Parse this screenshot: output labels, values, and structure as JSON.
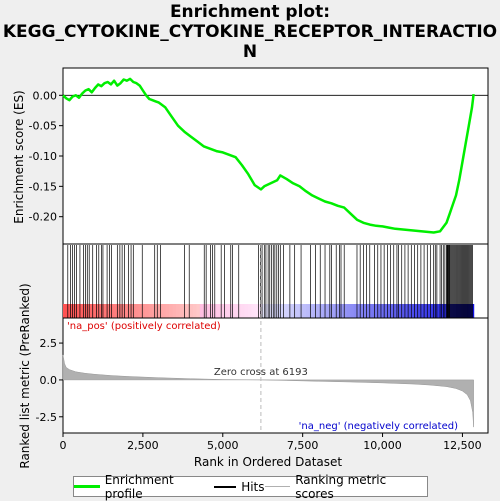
{
  "title_line1": "Enrichment plot:",
  "title_line2": "KEGG_CYTOKINE_CYTOKINE_RECEPTOR_INTERACTIO",
  "title_line3": "N",
  "chart_data": {
    "type": "line",
    "panels": {
      "enrichment": {
        "ylabel": "Enrichment score (ES)",
        "ylim": [
          -0.245,
          0.045
        ],
        "yticks": [
          0.0,
          -0.05,
          -0.1,
          -0.15,
          -0.2
        ],
        "ytick_labels": [
          "0.00",
          "-0.05",
          "-0.10",
          "-0.15",
          "-0.20"
        ],
        "line_color": "#00ee00",
        "series": [
          {
            "name": "Enrichment profile",
            "x": [
              0,
              100,
              200,
              300,
              400,
              500,
              600,
              700,
              800,
              900,
              1000,
              1100,
              1200,
              1300,
              1400,
              1500,
              1600,
              1700,
              1800,
              1900,
              2000,
              2100,
              2200,
              2300,
              2400,
              2500,
              2600,
              2700,
              2800,
              2900,
              3000,
              3200,
              3400,
              3600,
              3800,
              4000,
              4200,
              4400,
              4600,
              4800,
              5000,
              5200,
              5400,
              5600,
              5800,
              6000,
              6193,
              6300,
              6500,
              6700,
              6800,
              7000,
              7200,
              7400,
              7600,
              7800,
              8000,
              8200,
              8400,
              8600,
              8800,
              9000,
              9200,
              9400,
              9600,
              9800,
              10000,
              10200,
              10400,
              10600,
              10800,
              11000,
              11200,
              11400,
              11600,
              11800,
              12000,
              12100,
              12200,
              12300,
              12400,
              12500,
              12600,
              12700,
              12800,
              12850
            ],
            "y": [
              0.0,
              -0.005,
              -0.008,
              -0.002,
              0.0,
              -0.004,
              0.003,
              0.008,
              0.01,
              0.005,
              0.012,
              0.018,
              0.015,
              0.02,
              0.022,
              0.018,
              0.024,
              0.016,
              0.02,
              0.026,
              0.024,
              0.027,
              0.022,
              0.02,
              0.016,
              0.008,
              0.0,
              -0.006,
              -0.008,
              -0.01,
              -0.012,
              -0.02,
              -0.035,
              -0.05,
              -0.06,
              -0.068,
              -0.076,
              -0.084,
              -0.088,
              -0.092,
              -0.094,
              -0.098,
              -0.102,
              -0.115,
              -0.13,
              -0.148,
              -0.155,
              -0.15,
              -0.145,
              -0.14,
              -0.132,
              -0.138,
              -0.145,
              -0.15,
              -0.158,
              -0.165,
              -0.17,
              -0.175,
              -0.178,
              -0.182,
              -0.185,
              -0.195,
              -0.205,
              -0.21,
              -0.213,
              -0.215,
              -0.216,
              -0.218,
              -0.22,
              -0.221,
              -0.222,
              -0.223,
              -0.224,
              -0.225,
              -0.226,
              -0.224,
              -0.21,
              -0.195,
              -0.18,
              -0.165,
              -0.14,
              -0.11,
              -0.08,
              -0.05,
              -0.02,
              0.002
            ]
          }
        ]
      },
      "ranked_metric": {
        "ylabel": "Ranked list metric (PreRanked)",
        "ylim": [
          -3.6,
          4.2
        ],
        "yticks": [
          2.5,
          0.0,
          -2.5
        ],
        "ytick_labels": [
          "2.5",
          "0.0",
          "-2.5"
        ],
        "fill_color": "#b0b0b0",
        "x": [
          0,
          50,
          100,
          200,
          400,
          700,
          1000,
          1500,
          2000,
          3000,
          4000,
          5000,
          6193,
          7000,
          8000,
          9000,
          10000,
          11000,
          11500,
          12000,
          12300,
          12500,
          12650,
          12750,
          12820,
          12850
        ],
        "values": [
          1.7,
          1.1,
          0.85,
          0.7,
          0.55,
          0.45,
          0.38,
          0.3,
          0.24,
          0.15,
          0.08,
          0.03,
          0.0,
          -0.04,
          -0.09,
          -0.14,
          -0.2,
          -0.28,
          -0.35,
          -0.45,
          -0.58,
          -0.75,
          -1.0,
          -1.4,
          -2.2,
          -3.2
        ],
        "zero_cross_label": "Zero cross at 6193",
        "zero_cross_x": 6193,
        "pos_label": "'na_pos' (positively correlated)",
        "neg_label": "'na_neg' (negatively correlated)"
      }
    },
    "xlabel": "Rank in Ordered Dataset",
    "xlim": [
      0,
      13300
    ],
    "xticks": [
      0,
      2500,
      5000,
      7500,
      10000,
      12500
    ],
    "xtick_labels": [
      "0",
      "2,500",
      "5,000",
      "7,500",
      "10,000",
      "12,500"
    ],
    "n_genes": 12850,
    "hits": [
      150,
      230,
      300,
      360,
      420,
      530,
      640,
      700,
      760,
      820,
      930,
      1050,
      1120,
      1200,
      1250,
      1380,
      1460,
      1520,
      1700,
      1780,
      1850,
      1920,
      2050,
      2130,
      2200,
      2480,
      2870,
      2950,
      3050,
      3800,
      3950,
      4420,
      4480,
      4620,
      4680,
      4750,
      4950,
      5050,
      5250,
      5300,
      5500,
      6120,
      6180,
      6230,
      6300,
      6350,
      6420,
      6470,
      6530,
      6580,
      6630,
      6690,
      6740,
      6800,
      6900,
      7100,
      7250,
      7450,
      7750,
      7900,
      8050,
      8200,
      8350,
      8400,
      8550,
      8650,
      8700,
      8800,
      9200,
      9300,
      9400,
      9500,
      9600,
      9750,
      9850,
      9950,
      10050,
      10150,
      10250,
      10350,
      10450,
      10500,
      10600,
      10700,
      10800,
      10900,
      11000,
      11100,
      11200,
      11300,
      11400,
      11500,
      11600,
      11650,
      11700,
      11800,
      11850,
      11900,
      11950,
      12000,
      12020,
      12040,
      12060,
      12080,
      12100,
      12130,
      12160,
      12190,
      12220,
      12250,
      12280,
      12310,
      12340,
      12370,
      12400,
      12430,
      12460,
      12490,
      12520,
      12550,
      12580,
      12610,
      12640,
      12670,
      12700,
      12730,
      12760,
      12790,
      12820
    ]
  },
  "legend": {
    "enrichment_profile": "Enrichment profile",
    "hits": "Hits",
    "ranking_metric": "Ranking metric scores"
  }
}
